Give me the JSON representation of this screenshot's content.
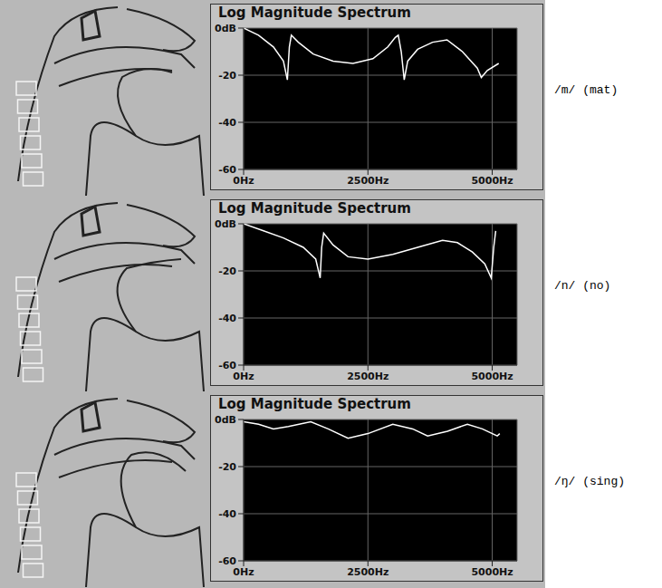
{
  "chart_data": [
    {
      "type": "line",
      "title": "Log Magnitude Spectrum",
      "annotation": "/m/ (mat)",
      "x": [
        0,
        300,
        600,
        800,
        880,
        920,
        960,
        1100,
        1400,
        1800,
        2200,
        2600,
        2900,
        3050,
        3110,
        3170,
        3230,
        3300,
        3500,
        3800,
        4090,
        4400,
        4700,
        4780,
        4900,
        5130
      ],
      "values": [
        0,
        -3,
        -8,
        -14,
        -22,
        -8,
        -3,
        -6,
        -11,
        -14,
        -15,
        -13,
        -8,
        -4,
        -3,
        -10,
        -22,
        -14,
        -9,
        -6,
        -5,
        -10,
        -17,
        -21,
        -18,
        -15
      ],
      "color": "#ffffff",
      "xlim": [
        0,
        5500
      ],
      "xticks": [
        {
          "value": 0,
          "label": "0Hz"
        },
        {
          "value": 2500,
          "label": "2500Hz"
        },
        {
          "value": 5000,
          "label": "5000Hz"
        }
      ],
      "ylim": [
        -60,
        0
      ],
      "yticks": [
        {
          "value": 0,
          "label": "0dB"
        },
        -20,
        -40,
        -60
      ],
      "grid": true
    },
    {
      "type": "line",
      "title": "Log Magnitude Spectrum",
      "annotation": "/n/ (no)",
      "x": [
        0,
        400,
        800,
        1200,
        1450,
        1540,
        1570,
        1610,
        1800,
        2100,
        2500,
        3000,
        3500,
        4000,
        4300,
        4600,
        4850,
        4980,
        5030,
        5070
      ],
      "values": [
        0,
        -3,
        -6,
        -10,
        -15,
        -23,
        -10,
        -4,
        -9,
        -14,
        -15,
        -13,
        -10,
        -7,
        -8,
        -12,
        -17,
        -23,
        -10,
        -3
      ],
      "color": "#ffffff",
      "xlim": [
        0,
        5500
      ],
      "xticks": [
        {
          "value": 0,
          "label": "0Hz"
        },
        {
          "value": 2500,
          "label": "2500Hz"
        },
        {
          "value": 5000,
          "label": "5000Hz"
        }
      ],
      "ylim": [
        -60,
        0
      ],
      "yticks": [
        {
          "value": 0,
          "label": "0dB"
        },
        -20,
        -40,
        -60
      ],
      "grid": true
    },
    {
      "type": "line",
      "title": "Log Magnitude Spectrum",
      "annotation": "/ŋ/ (sing)",
      "x": [
        0,
        300,
        600,
        900,
        1350,
        1700,
        2100,
        2500,
        3000,
        3400,
        3700,
        4100,
        4500,
        4800,
        5100,
        5150
      ],
      "values": [
        -1,
        -2,
        -4,
        -3,
        -1,
        -4,
        -8,
        -6,
        -2,
        -4,
        -7,
        -5,
        -2,
        -4,
        -7,
        -6
      ],
      "color": "#ffffff",
      "xlim": [
        0,
        5500
      ],
      "xticks": [
        {
          "value": 0,
          "label": "0Hz"
        },
        {
          "value": 2500,
          "label": "2500Hz"
        },
        {
          "value": 5000,
          "label": "5000Hz"
        }
      ],
      "ylim": [
        -60,
        0
      ],
      "yticks": [
        {
          "value": 0,
          "label": "0dB"
        },
        -20,
        -40,
        -60
      ],
      "grid": true
    }
  ]
}
